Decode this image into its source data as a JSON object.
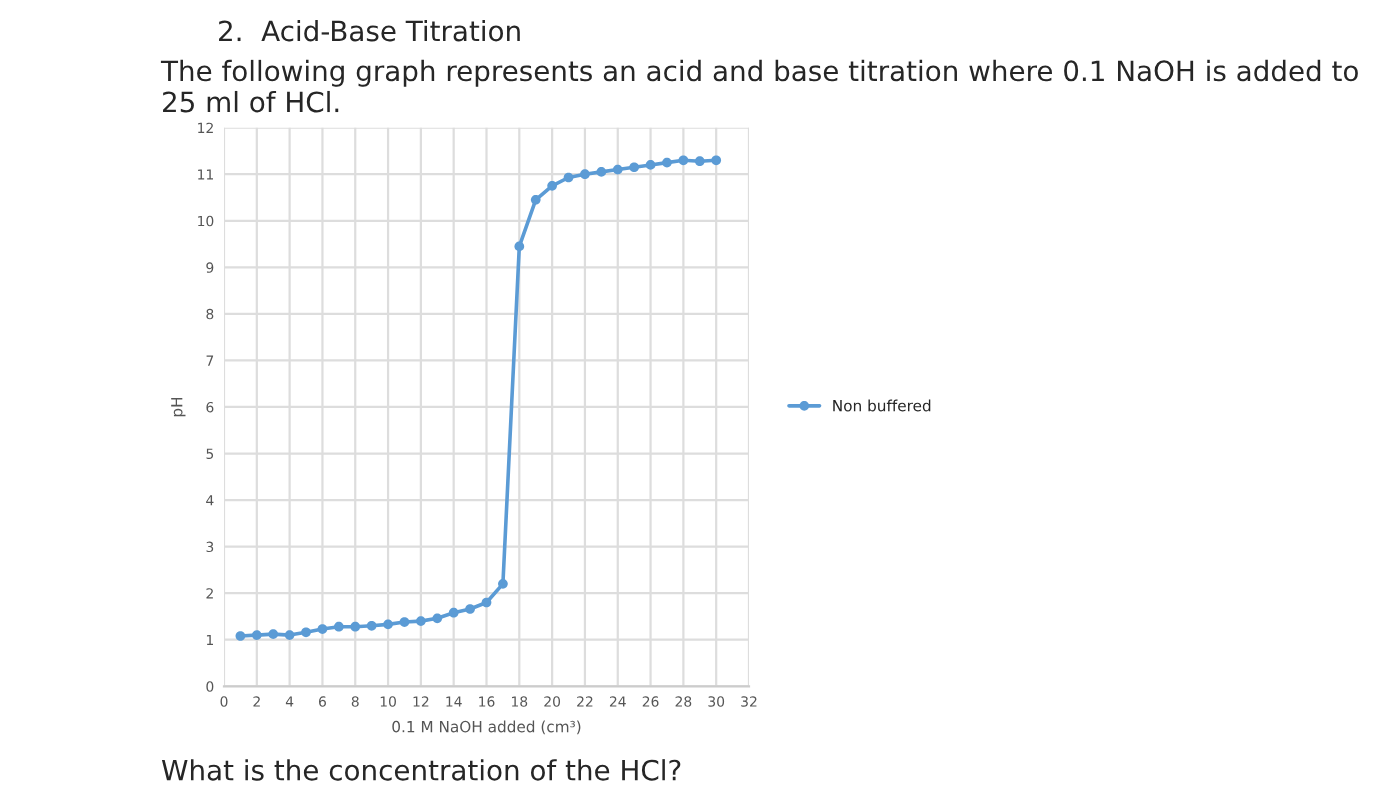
{
  "chart_data": {
    "type": "line",
    "title": "2.  Acid-Base Titration",
    "subtitle": "The following graph represents an acid and base titration where 0.1 NaOH is added to 25 ml of HCl.",
    "annotations": [
      "What is the concentration of the HCl?"
    ],
    "xlabel": "0.1 M NaOH added (cm³)",
    "ylabel": "pH",
    "series": [
      {
        "name": "Non buffered",
        "color": "#5b9bd5",
        "x": [
          1,
          2,
          3,
          4,
          5,
          6,
          7,
          8,
          9,
          10,
          11,
          12,
          13,
          14,
          15,
          16,
          17,
          18,
          19,
          20,
          21,
          22,
          23,
          24,
          25,
          26,
          27,
          28,
          29,
          30
        ],
        "values": [
          1.08,
          1.1,
          1.12,
          1.1,
          1.16,
          1.23,
          1.28,
          1.28,
          1.3,
          1.33,
          1.38,
          1.4,
          1.46,
          1.58,
          1.66,
          1.8,
          2.2,
          9.45,
          10.45,
          10.75,
          10.93,
          11.0,
          11.05,
          11.1,
          11.15,
          11.2,
          11.25,
          11.3,
          11.28,
          11.3
        ]
      }
    ],
    "xlim": [
      0,
      32
    ],
    "xticks": [
      0,
      2,
      4,
      6,
      8,
      10,
      12,
      14,
      16,
      18,
      20,
      22,
      24,
      26,
      28,
      30,
      32
    ],
    "ylim": [
      0,
      12
    ],
    "yticks": [
      0,
      1,
      2,
      3,
      4,
      5,
      6,
      7,
      8,
      9,
      10,
      11,
      12
    ],
    "grid": true,
    "legend": "right",
    "marker": "circle",
    "line_style": "solid"
  }
}
